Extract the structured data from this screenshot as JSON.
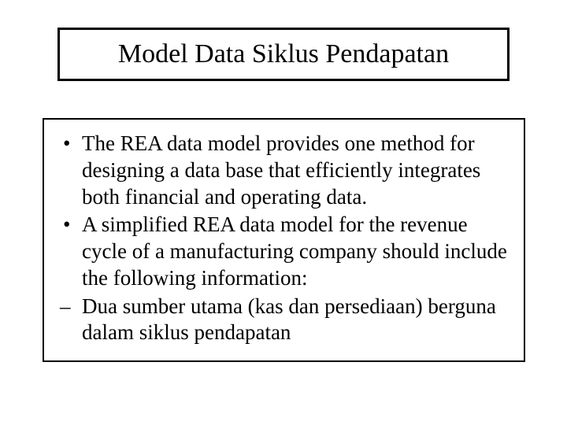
{
  "slide": {
    "title": "Model Data Siklus Pendapatan",
    "bullets": [
      "The REA data model provides one method for designing a data base that efficiently integrates both financial and operating data.",
      "A simplified REA data model for the revenue cycle of a manufacturing company should include the following information:"
    ],
    "dash": "Dua sumber utama (kas dan persediaan) berguna dalam siklus pendapatan"
  },
  "colors": {
    "background": "#ffffff",
    "text": "#000000",
    "border": "#000000"
  },
  "typography": {
    "font_family": "Times New Roman",
    "title_fontsize": 34,
    "body_fontsize": 27
  }
}
